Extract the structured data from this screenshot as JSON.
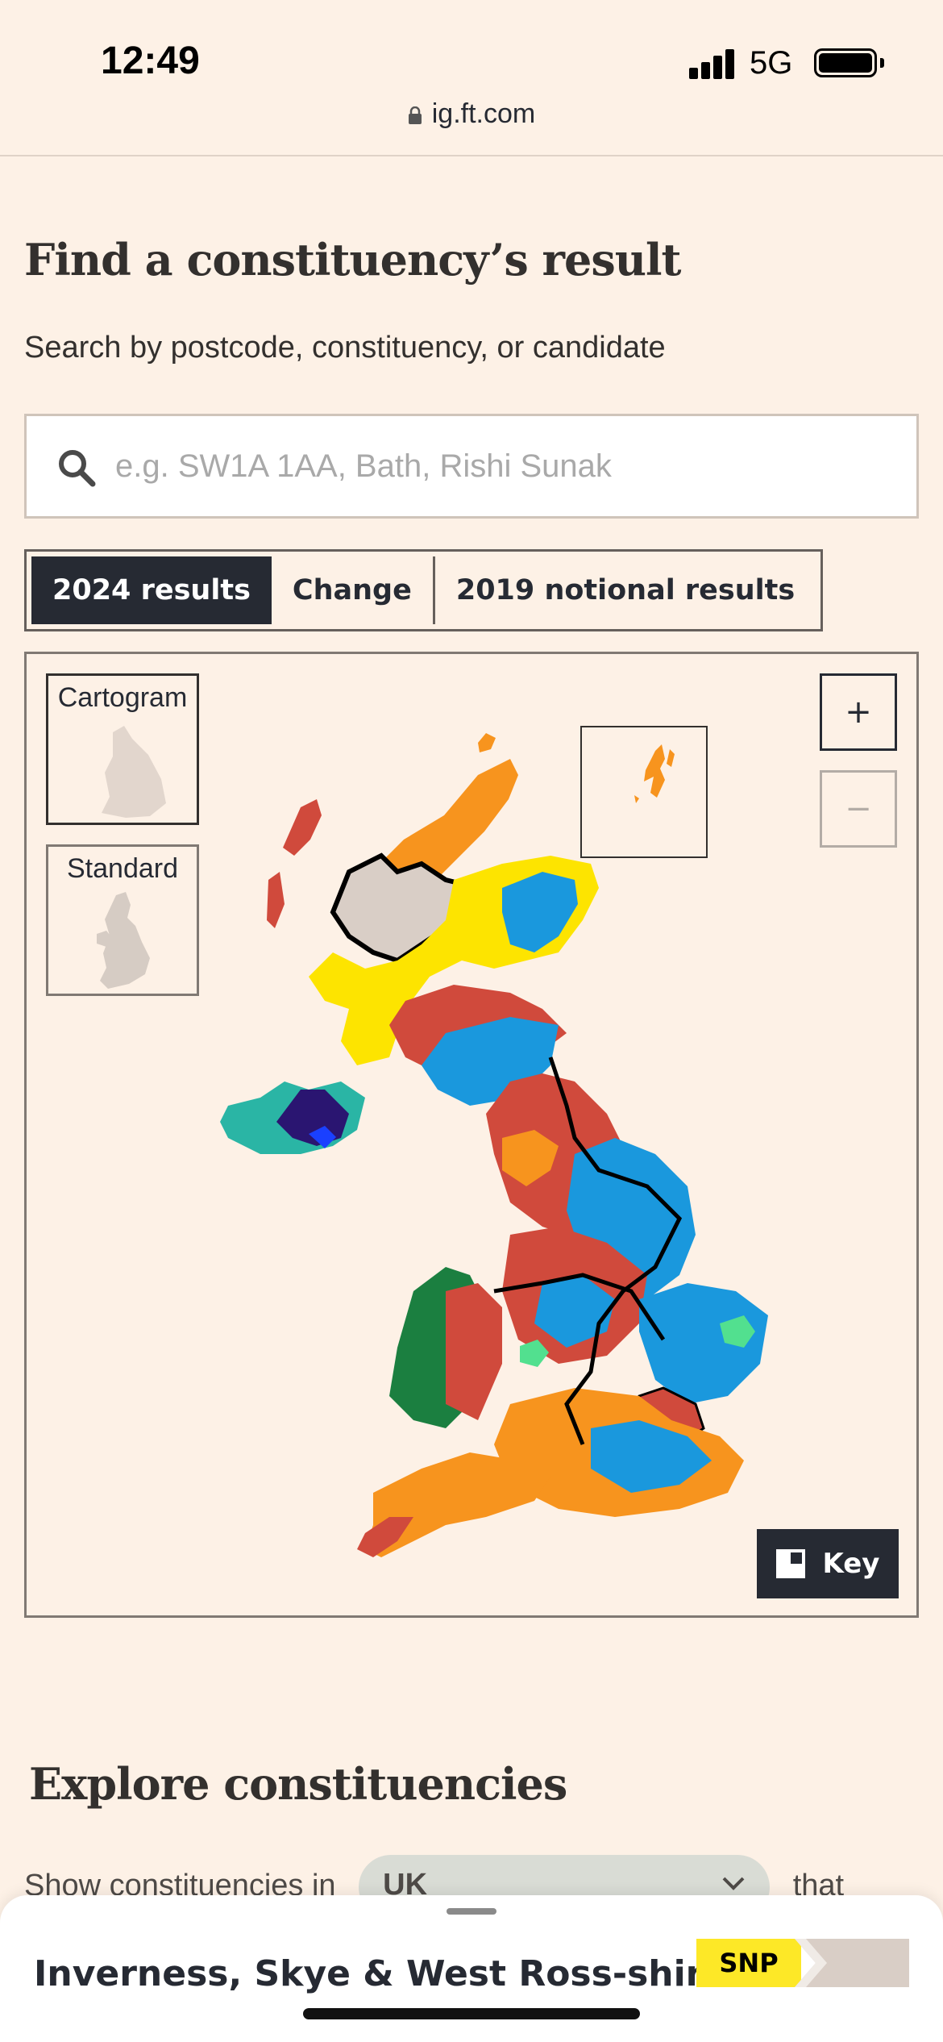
{
  "status": {
    "time": "12:49",
    "network": "5G"
  },
  "browser": {
    "url": "ig.ft.com"
  },
  "header": {
    "title": "Find a constituency’s result",
    "subtitle": "Search by postcode, constituency, or candidate"
  },
  "search": {
    "placeholder": "e.g. SW1A 1AA, Bath, Rishi Sunak",
    "value": ""
  },
  "tabs": [
    {
      "label": "2024 results",
      "active": true
    },
    {
      "label": "Change",
      "active": false
    },
    {
      "label": "2019 notional results",
      "active": false
    }
  ],
  "map": {
    "views": [
      {
        "label": "Cartogram",
        "selected": true
      },
      {
        "label": "Standard",
        "selected": false
      }
    ],
    "zoom_in": "+",
    "zoom_out": "−",
    "key_label": "Key",
    "highlighted_constituency": "Inverness, Skye & West Ross-shire",
    "colors": {
      "labour": "#d04a3c",
      "conservative": "#1a98dd",
      "libdem": "#f7941e",
      "snp": "#fde400",
      "plaid": "#1b7f40",
      "green": "#52e08f",
      "reform": "#3fc1cf",
      "sinn_fein": "#2ab5a5",
      "dup": "#2a1571",
      "highlight": "#d9cec6"
    }
  },
  "explore": {
    "title": "Explore constituencies",
    "filter_prefix": "Show constituencies in",
    "filter_value": "UK",
    "filter_suffix": "that"
  },
  "sheet": {
    "constituency": "Inverness, Skye & West Ross-shire",
    "party": "SNP",
    "party_color": "#fde827"
  }
}
